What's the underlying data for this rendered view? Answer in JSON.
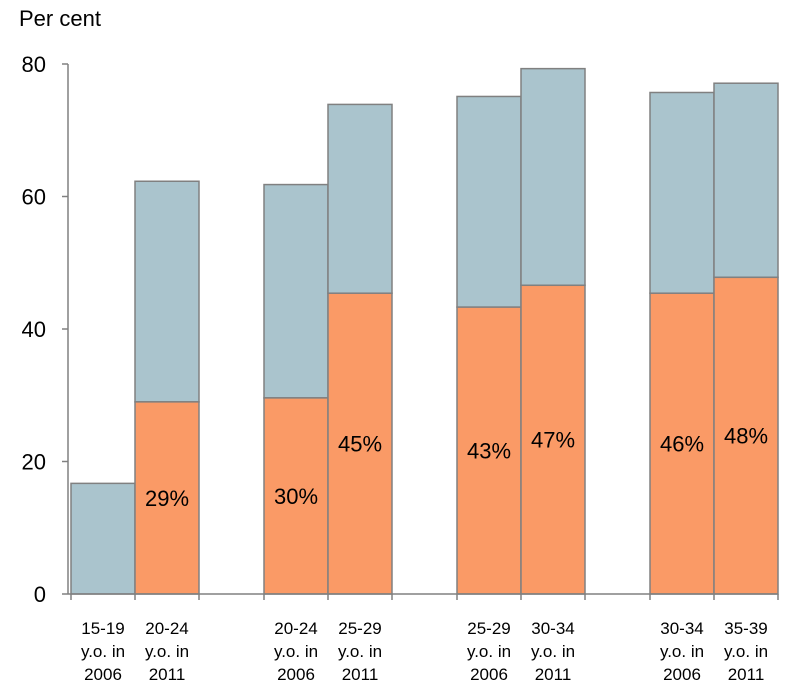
{
  "chart_data": {
    "type": "bar",
    "stacked": true,
    "ylabel": "Per cent",
    "ylim": [
      0,
      80
    ],
    "yticks": [
      0,
      20,
      40,
      60,
      80
    ],
    "grid": false,
    "bars": [
      {
        "label": [
          "15-19",
          "y.o. in",
          "2006"
        ],
        "lower": 0,
        "total": 16.7,
        "data_label": ""
      },
      {
        "label": [
          "20-24",
          "y.o. in",
          "2011"
        ],
        "lower": 29.0,
        "total": 62.3,
        "data_label": "29%"
      },
      {
        "label": [
          "20-24",
          "y.o. in",
          "2006"
        ],
        "lower": 29.6,
        "total": 61.8,
        "data_label": "30%"
      },
      {
        "label": [
          "25-29",
          "y.o. in",
          "2011"
        ],
        "lower": 45.4,
        "total": 73.9,
        "data_label": "45%"
      },
      {
        "label": [
          "25-29",
          "y.o. in",
          "2006"
        ],
        "lower": 43.3,
        "total": 75.1,
        "data_label": "43%"
      },
      {
        "label": [
          "30-34",
          "y.o. in",
          "2011"
        ],
        "lower": 46.6,
        "total": 79.3,
        "data_label": "47%"
      },
      {
        "label": [
          "30-34",
          "y.o. in",
          "2006"
        ],
        "lower": 45.4,
        "total": 75.7,
        "data_label": "46%"
      },
      {
        "label": [
          "35-39",
          "y.o. in",
          "2011"
        ],
        "lower": 47.8,
        "total": 77.1,
        "data_label": "48%"
      }
    ],
    "colors": {
      "lower": "#fa9a66",
      "upper": "#aac4cd",
      "outline": "#808080"
    }
  }
}
